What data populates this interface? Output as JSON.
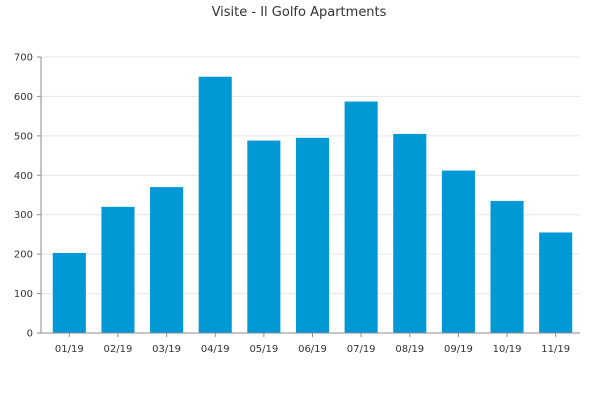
{
  "chart_data": {
    "type": "bar",
    "title": "Visite - Il Golfo Apartments",
    "xlabel": "",
    "ylabel": "",
    "categories": [
      "01/19",
      "02/19",
      "03/19",
      "04/19",
      "05/19",
      "06/19",
      "07/19",
      "08/19",
      "09/19",
      "10/19",
      "11/19"
    ],
    "values": [
      203,
      320,
      370,
      650,
      488,
      495,
      587,
      505,
      412,
      335,
      255
    ],
    "ylim": [
      0,
      700
    ],
    "yticks": [
      0,
      100,
      200,
      300,
      400,
      500,
      600,
      700
    ],
    "grid": true,
    "legend": "none",
    "bar_color": "#0099d6"
  }
}
